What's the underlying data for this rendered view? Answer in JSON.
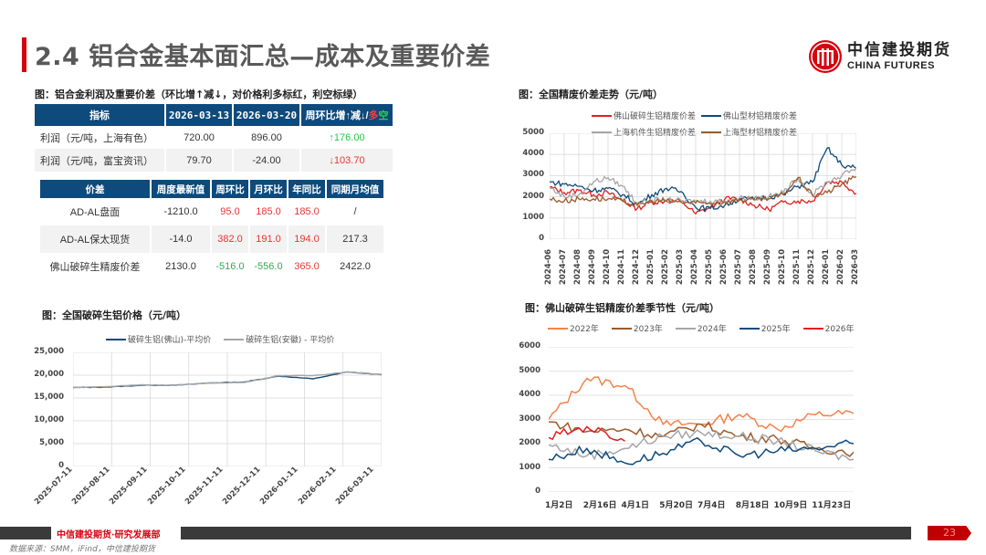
{
  "header": {
    "title": "2.4 铝合金基本面汇总—成本及重要价差",
    "logo_cn": "中信建投期货",
    "logo_en": "CHINA FUTURES"
  },
  "table_profit": {
    "caption": "图：铝合金利润及重要价差（环比增↑减↓，对价格利多标红，利空标绿）",
    "headers": [
      "指标",
      "2026-03-13",
      "2026-03-20",
      "周环比增↑减↓/",
      "多",
      "空"
    ],
    "rows": [
      {
        "label": "利润（元/吨，上海有色）",
        "v1": "720.00",
        "v2": "896.00",
        "chg": "↑176.00",
        "chg_color": "green"
      },
      {
        "label": "利润（元/吨，富宝资讯）",
        "v1": "79.70",
        "v2": "-24.00",
        "chg": "↓103.70",
        "chg_color": "red"
      }
    ]
  },
  "table_spread": {
    "headers": [
      "价差",
      "周度最新值",
      "周环比",
      "月环比",
      "年同比",
      "同期月均值"
    ],
    "rows": [
      {
        "label": "AD-AL盘面",
        "latest": "-1210.0",
        "wow": "95.0",
        "mom": "185.0",
        "yoy": "185.0",
        "avg": "/",
        "wow_c": "red",
        "mom_c": "red",
        "yoy_c": "red"
      },
      {
        "label": "AD-AL保太现货",
        "latest": "-14.0",
        "wow": "382.0",
        "mom": "191.0",
        "yoy": "194.0",
        "avg": "217.3",
        "wow_c": "red",
        "mom_c": "red",
        "yoy_c": "red"
      },
      {
        "label": "佛山破碎生精废价差",
        "latest": "2130.0",
        "wow": "-516.0",
        "mom": "-556.0",
        "yoy": "365.0",
        "avg": "2422.0",
        "wow_c": "green",
        "mom_c": "green",
        "yoy_c": "red"
      }
    ]
  },
  "charts": {
    "spread_trend": {
      "title": "图：全国精废价差走势（元/吨）",
      "legend": [
        {
          "name": "佛山破碎生铝精废价差",
          "color": "#e02020"
        },
        {
          "name": "佛山型材铝精废价差",
          "color": "#0e4a7b"
        },
        {
          "name": "上海机件生铝精废价差",
          "color": "#a6a6a6"
        },
        {
          "name": "上海型材铝精废价差",
          "color": "#9b5b2b"
        }
      ],
      "yticks": [
        "5000",
        "4000",
        "3000",
        "2000",
        "1000",
        "0"
      ],
      "xticks": [
        "2024-06",
        "2024-07",
        "2024-08",
        "2024-09",
        "2024-10",
        "2024-11",
        "2024-12",
        "2025-01",
        "2025-02",
        "2025-03",
        "2025-04",
        "2025-05",
        "2025-06",
        "2025-07",
        "2025-08",
        "2025-09",
        "2025-10",
        "2025-11",
        "2025-12",
        "2026-01",
        "2026-02",
        "2026-03"
      ]
    },
    "scrap_price": {
      "title": "图：全国破碎生铝价格（元/吨）",
      "legend": [
        {
          "name": "破碎生铝(佛山)-平均价",
          "color": "#0e4a7b"
        },
        {
          "name": "破碎生铝(安徽) - 平均价",
          "color": "#a6a6a6"
        }
      ],
      "yticks": [
        "25,000",
        "20,000",
        "15,000",
        "10,000",
        "5,000",
        "0"
      ],
      "xticks": [
        "2025-07-11",
        "2025-08-11",
        "2025-09-11",
        "2025-10-11",
        "2025-11-11",
        "2025-12-11",
        "2026-01-11",
        "2026-02-11",
        "2026-03-11"
      ]
    },
    "seasonality": {
      "title": "图：佛山破碎生铝精废价差季节性（元/吨）",
      "legend": [
        {
          "name": "2022年",
          "color": "#f4824a"
        },
        {
          "name": "2023年",
          "color": "#9b5b2b"
        },
        {
          "name": "2024年",
          "color": "#a6a6a6"
        },
        {
          "name": "2025年",
          "color": "#0e4a7b"
        },
        {
          "name": "2026年",
          "color": "#e02020"
        }
      ],
      "yticks": [
        "6000",
        "5000",
        "4000",
        "3000",
        "2000",
        "1000",
        "0"
      ],
      "xticks": [
        "1月2日",
        "2月16日",
        "4月1日",
        "5月20日",
        "7月4日",
        "8月18日",
        "10月9日",
        "11月23日"
      ]
    }
  },
  "chart_data": [
    {
      "type": "line",
      "title": "全国精废价差走势（元/吨）",
      "x": [
        "2024-06",
        "2024-07",
        "2024-08",
        "2024-09",
        "2024-10",
        "2024-11",
        "2024-12",
        "2025-01",
        "2025-02",
        "2025-03",
        "2025-04",
        "2025-05",
        "2025-06",
        "2025-07",
        "2025-08",
        "2025-09",
        "2025-10",
        "2025-11",
        "2025-12",
        "2026-01",
        "2026-02",
        "2026-03"
      ],
      "series": [
        {
          "name": "佛山破碎生铝精废价差",
          "values": [
            2450,
            2200,
            2300,
            2100,
            2200,
            1800,
            1450,
            1750,
            1800,
            1800,
            1200,
            1500,
            1900,
            1900,
            1600,
            1400,
            1750,
            1800,
            1800,
            2700,
            2700,
            2150
          ]
        },
        {
          "name": "佛山型材铝精废价差",
          "values": [
            2700,
            2600,
            2500,
            2300,
            2400,
            2100,
            1650,
            2100,
            2400,
            2250,
            1500,
            1450,
            1600,
            1900,
            1900,
            2000,
            2100,
            2500,
            2700,
            4300,
            3500,
            3350
          ]
        },
        {
          "name": "上海机件生铝精废价差",
          "values": [
            2450,
            2000,
            2100,
            2700,
            2900,
            2500,
            1700,
            1850,
            1850,
            1800,
            1800,
            1800,
            1800,
            1950,
            1950,
            2000,
            2200,
            2900,
            2100,
            2700,
            3000,
            3400
          ]
        },
        {
          "name": "上海型材铝精废价差",
          "values": [
            1900,
            1800,
            1900,
            1900,
            1900,
            1800,
            1600,
            1800,
            1800,
            1750,
            1700,
            1700,
            1750,
            1850,
            1850,
            1900,
            2100,
            2900,
            2050,
            2200,
            2600,
            2950
          ]
        }
      ],
      "ylim": [
        0,
        5000
      ],
      "legend_position": "top",
      "grid": true
    },
    {
      "type": "line",
      "title": "全国破碎生铝价格（元/吨）",
      "x": [
        "2025-07-11",
        "2025-08-11",
        "2025-09-11",
        "2025-10-11",
        "2025-11-11",
        "2025-12-11",
        "2026-01-11",
        "2026-02-11",
        "2026-03-11",
        "2026-03-20"
      ],
      "series": [
        {
          "name": "破碎生铝(佛山)-平均价",
          "values": [
            17300,
            17400,
            17800,
            17800,
            18300,
            18500,
            19800,
            19200,
            20700,
            20100
          ]
        },
        {
          "name": "破碎生铝(安徽) - 平均价",
          "values": [
            17300,
            17500,
            17900,
            17800,
            18300,
            18400,
            19900,
            19900,
            20700,
            20200
          ]
        }
      ],
      "ylim": [
        0,
        25000
      ],
      "legend_position": "top",
      "grid": true
    },
    {
      "type": "line",
      "title": "佛山破碎生铝精废价差季节性（元/吨）",
      "x": [
        "1月2日",
        "2月16日",
        "4月1日",
        "5月20日",
        "7月4日",
        "8月18日",
        "10月9日",
        "11月23日",
        "12月31日"
      ],
      "series": [
        {
          "name": "2022年",
          "values": [
            3000,
            4700,
            4400,
            2800,
            2800,
            3200,
            2600,
            3200,
            3250
          ]
        },
        {
          "name": "2023年",
          "values": [
            2900,
            2500,
            2600,
            2300,
            2800,
            2300,
            2200,
            1800,
            1650
          ]
        },
        {
          "name": "2024年",
          "values": [
            1950,
            1500,
            1800,
            2300,
            2450,
            2300,
            2100,
            1700,
            1350
          ]
        },
        {
          "name": "2025年",
          "values": [
            1350,
            1800,
            1200,
            1600,
            2100,
            1500,
            1700,
            1800,
            2000
          ]
        },
        {
          "name": "2026年",
          "values": [
            2250,
            2700,
            2100,
            null,
            null,
            null,
            null,
            null,
            null
          ]
        }
      ],
      "ylim": [
        0,
        6000
      ],
      "legend_position": "top",
      "grid": true
    }
  ],
  "footer": {
    "org": "中信建投期货·研究发展部",
    "source": "数据来源：SMM，iFind，中信建投期货",
    "page": "23"
  }
}
